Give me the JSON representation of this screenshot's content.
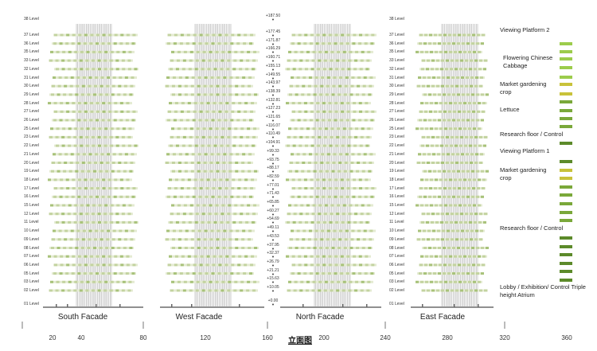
{
  "levels": [
    {
      "label": "38 Level",
      "elevation": "+187.50"
    },
    {
      "label": "37 Level",
      "elevation": "+177.45"
    },
    {
      "label": "36 Level",
      "elevation": "+171.87"
    },
    {
      "label": "35 Level",
      "elevation": "+166.29"
    },
    {
      "label": "33 Level",
      "elevation": "+160.71"
    },
    {
      "label": "32 Level",
      "elevation": "+155.13"
    },
    {
      "label": "31 Level",
      "elevation": "+149.55"
    },
    {
      "label": "30 Level",
      "elevation": "+143.97"
    },
    {
      "label": "29 Level",
      "elevation": "+138.39"
    },
    {
      "label": "28 Level",
      "elevation": "+132.81"
    },
    {
      "label": "27 Level",
      "elevation": "+127.23"
    },
    {
      "label": "26 Level",
      "elevation": "+121.65"
    },
    {
      "label": "25 Level",
      "elevation": "+116.07"
    },
    {
      "label": "23 Level",
      "elevation": "+110.49"
    },
    {
      "label": "22 Level",
      "elevation": "+104.91"
    },
    {
      "label": "21 Level",
      "elevation": "+99.33"
    },
    {
      "label": "20 Level",
      "elevation": "+93.75"
    },
    {
      "label": "19 Level",
      "elevation": "+88.17"
    },
    {
      "label": "18 Level",
      "elevation": "+82.59"
    },
    {
      "label": "17 Level",
      "elevation": "+77.01"
    },
    {
      "label": "16 Level",
      "elevation": "+71.43"
    },
    {
      "label": "15 Level",
      "elevation": "+65.85"
    },
    {
      "label": "12 Level",
      "elevation": "+60.27"
    },
    {
      "label": "11 Level",
      "elevation": "+54.69"
    },
    {
      "label": "10 Level",
      "elevation": "+49.11"
    },
    {
      "label": "09 Level",
      "elevation": "+43.53"
    },
    {
      "label": "08 Level",
      "elevation": "+37.95"
    },
    {
      "label": "07 Level",
      "elevation": "+32.37"
    },
    {
      "label": "06 Level",
      "elevation": "+26.79"
    },
    {
      "label": "05 Level",
      "elevation": "+21.21"
    },
    {
      "label": "03 Level",
      "elevation": "+15.63"
    },
    {
      "label": "02 Level",
      "elevation": "+10.05"
    },
    {
      "label": "01 Level",
      "elevation": "+0.00"
    }
  ],
  "facades": [
    {
      "label": "South Facade"
    },
    {
      "label": "West Facade"
    },
    {
      "label": "North Facade"
    },
    {
      "label": "East Facade"
    }
  ],
  "legend": [
    {
      "label": "Viewing Platform 2"
    },
    {
      "label": "Flowering Chinese Cabbage"
    },
    {
      "label": "Market gardening crop"
    },
    {
      "label": "Lettuce"
    },
    {
      "label": "Research floor / Control"
    },
    {
      "label": "Viewing Platform 1"
    },
    {
      "label": "Market gardening crop"
    },
    {
      "label": "Research floor / Control"
    },
    {
      "label": "Lobby / Exhibition/ Control Triple height Atrium"
    }
  ],
  "swatch_colors": {
    "light_green": "#9ccc4c",
    "yellow_green": "#c8c23a",
    "mid_green": "#7aa83a",
    "dark_green": "#5c8a2a"
  },
  "axis": {
    "title": "立面图",
    "ticks": [
      "20",
      "40",
      "80",
      "120",
      "160",
      "200",
      "240",
      "280",
      "320",
      "360"
    ]
  }
}
